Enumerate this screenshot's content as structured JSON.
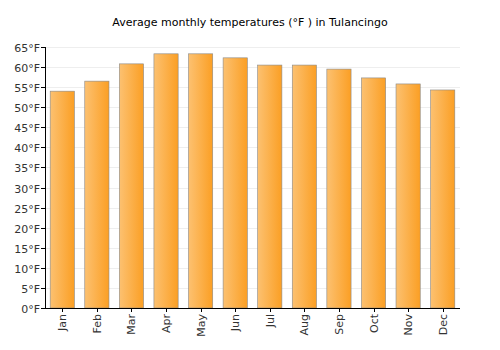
{
  "chart_data": {
    "type": "bar",
    "title": "Average monthly temperatures (°F ) in Tulancingo",
    "categories": [
      "Jan",
      "Feb",
      "Mar",
      "Apr",
      "May",
      "Jun",
      "Jul",
      "Aug",
      "Sep",
      "Oct",
      "Nov",
      "Dec"
    ],
    "values": [
      54.0,
      56.5,
      60.8,
      63.3,
      63.3,
      62.3,
      60.5,
      60.5,
      59.5,
      57.3,
      55.8,
      54.3
    ],
    "color": "#fb9f24",
    "ylim": [
      0,
      65
    ],
    "yticks": [
      {
        "value": 0,
        "label": "0°F"
      },
      {
        "value": 5,
        "label": "5°F"
      },
      {
        "value": 10,
        "label": "10°F"
      },
      {
        "value": 15,
        "label": "15°F"
      },
      {
        "value": 20,
        "label": "20°F"
      },
      {
        "value": 25,
        "label": "25°F"
      },
      {
        "value": 30,
        "label": "30°F"
      },
      {
        "value": 35,
        "label": "35°F"
      },
      {
        "value": 40,
        "label": "40°F"
      },
      {
        "value": 45,
        "label": "45°F"
      },
      {
        "value": 50,
        "label": "50°F"
      },
      {
        "value": 55,
        "label": "55°F"
      },
      {
        "value": 60,
        "label": "60°F"
      },
      {
        "value": 65,
        "label": "65°F"
      }
    ],
    "grid": true
  }
}
